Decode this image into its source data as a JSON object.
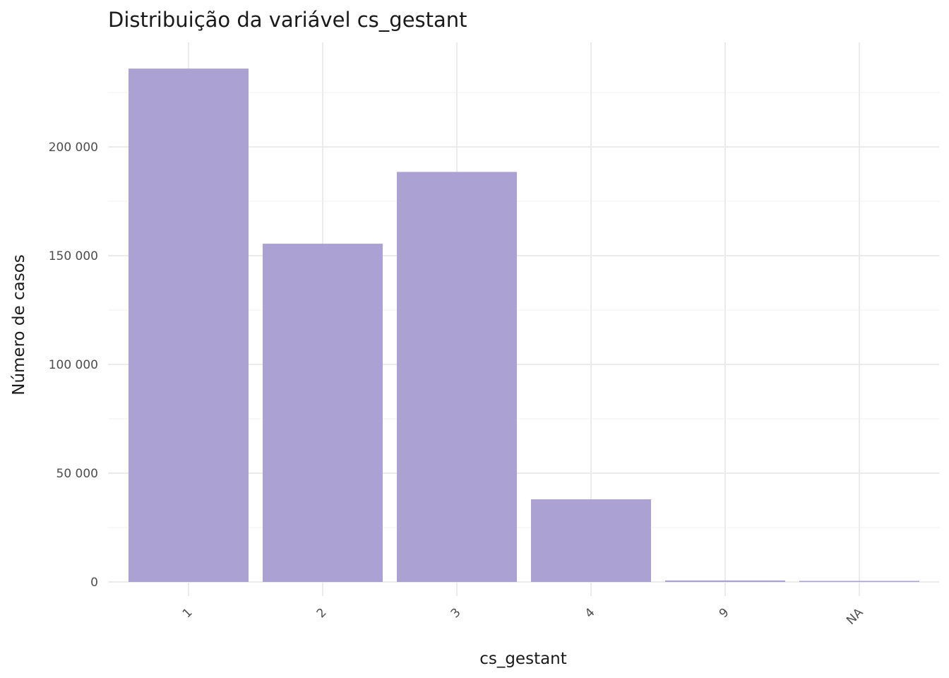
{
  "chart_data": {
    "type": "bar",
    "title": "Distribuição da variável  cs_gestant",
    "xlabel": "cs_gestant",
    "ylabel": "Número de casos",
    "categories": [
      "1",
      "2",
      "3",
      "4",
      "9",
      "NA"
    ],
    "values": [
      236000,
      155500,
      188500,
      38000,
      700,
      400
    ],
    "ylim": [
      0,
      240000
    ],
    "yticks": [
      0,
      50000,
      100000,
      150000,
      200000
    ],
    "ytick_labels": [
      "0",
      "50 000",
      "100 000",
      "150 000",
      "200 000"
    ],
    "bar_color": "#aba2d3",
    "grid": true,
    "legend": "none"
  }
}
